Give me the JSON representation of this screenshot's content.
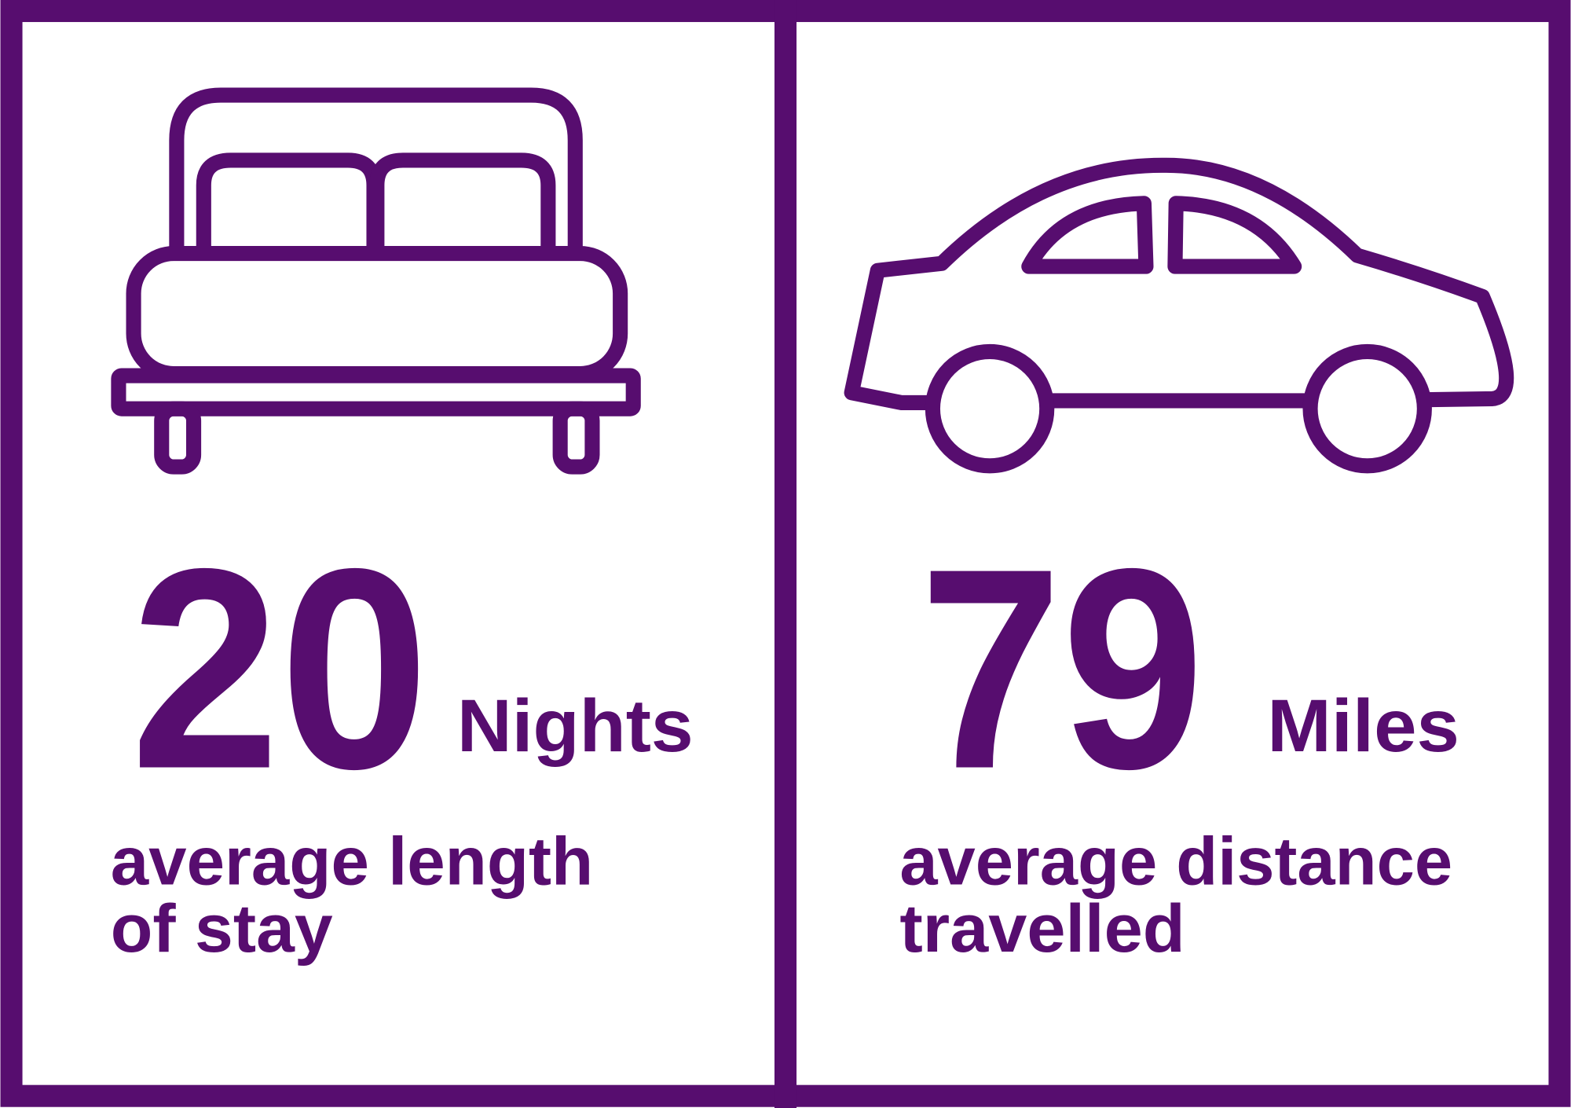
{
  "colors": {
    "accent": "#570d6f",
    "background": "#ffffff"
  },
  "panels": [
    {
      "icon": "bed-icon",
      "value": "20",
      "unit": "Nights",
      "caption_line1": "average length",
      "caption_line2": "of stay"
    },
    {
      "icon": "car-icon",
      "value": "79",
      "unit": "Miles",
      "caption_line1": "average distance",
      "caption_line2": "travelled"
    }
  ]
}
